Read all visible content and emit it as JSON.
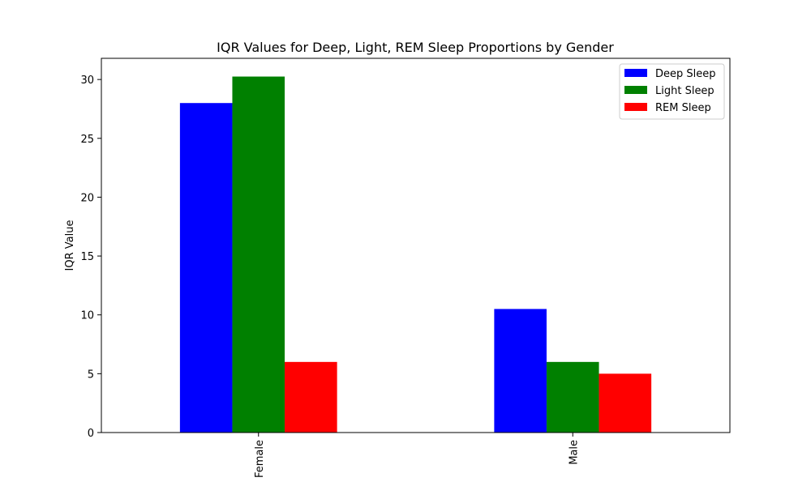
{
  "chart_data": {
    "type": "bar",
    "title": "IQR Values for Deep, Light, REM Sleep Proportions by Gender",
    "xlabel": "",
    "ylabel": "IQR Value",
    "categories": [
      "Female",
      "Male"
    ],
    "series": [
      {
        "name": "Deep Sleep",
        "color": "#0000ff",
        "values": [
          28.0,
          10.5
        ]
      },
      {
        "name": "Light Sleep",
        "color": "#008000",
        "values": [
          30.25,
          6.0
        ]
      },
      {
        "name": "REM Sleep",
        "color": "#ff0000",
        "values": [
          6.0,
          5.0
        ]
      }
    ],
    "ylim": [
      0,
      31.8
    ],
    "yticks": [
      0,
      5,
      10,
      15,
      20,
      25,
      30
    ],
    "grid": false,
    "legend_position": "top-right"
  }
}
